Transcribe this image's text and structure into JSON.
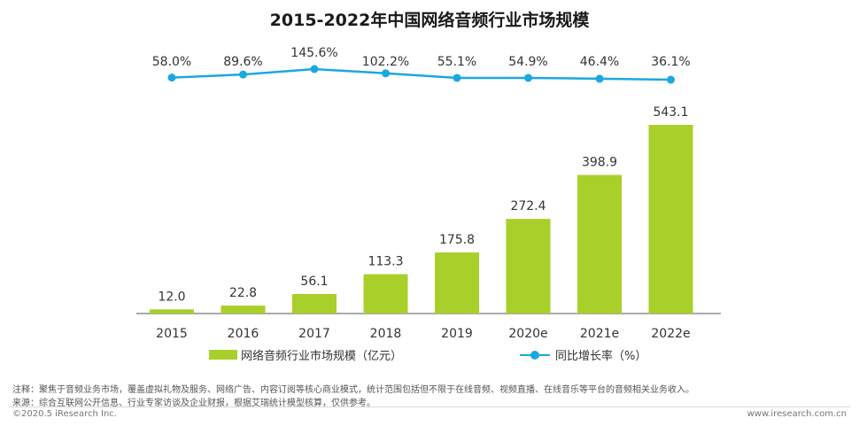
{
  "chart_data": {
    "type": "bar",
    "title": "2015-2022年中国网络音频行业市场规模",
    "categories": [
      "2015",
      "2016",
      "2017",
      "2018",
      "2019",
      "2020e",
      "2021e",
      "2022e"
    ],
    "series": [
      {
        "name": "网络音频行业市场规模（亿元）",
        "type": "bar",
        "values": [
          12.0,
          22.8,
          56.1,
          113.3,
          175.8,
          272.4,
          398.9,
          543.1
        ],
        "labels": [
          "12.0",
          "22.8",
          "56.1",
          "113.3",
          "175.8",
          "272.4",
          "398.9",
          "543.1"
        ]
      },
      {
        "name": "同比增长率（%）",
        "type": "line",
        "values": [
          58.0,
          89.6,
          145.6,
          102.2,
          55.1,
          54.9,
          46.4,
          36.1
        ],
        "labels": [
          "58.0%",
          "89.6%",
          "145.6%",
          "102.2%",
          "55.1%",
          "54.9%",
          "46.4%",
          "36.1%"
        ]
      }
    ],
    "ylim": [
      0,
      543.1
    ],
    "growth_ylim": [
      0,
      145.6
    ],
    "legend": "bottom",
    "colors": {
      "bar": "#a9cf2a",
      "line": "#1aa8e0",
      "axis": "#555555"
    }
  },
  "notes": {
    "note1": "注释：聚焦于音频业务市场，覆盖虚拟礼物及服务、网络广告、内容订阅等核心商业模式，统计范围包括但不限于在线音频、视频直播、在线音乐等平台的音频相关业务收入。",
    "note2": "来源：综合互联网公开信息、行业专家访谈及企业财报，根据艾瑞统计模型核算，仅供参考。"
  },
  "footer": {
    "copyright": "©2020.5 iResearch Inc.",
    "website": "www.iresearch.com.cn"
  }
}
